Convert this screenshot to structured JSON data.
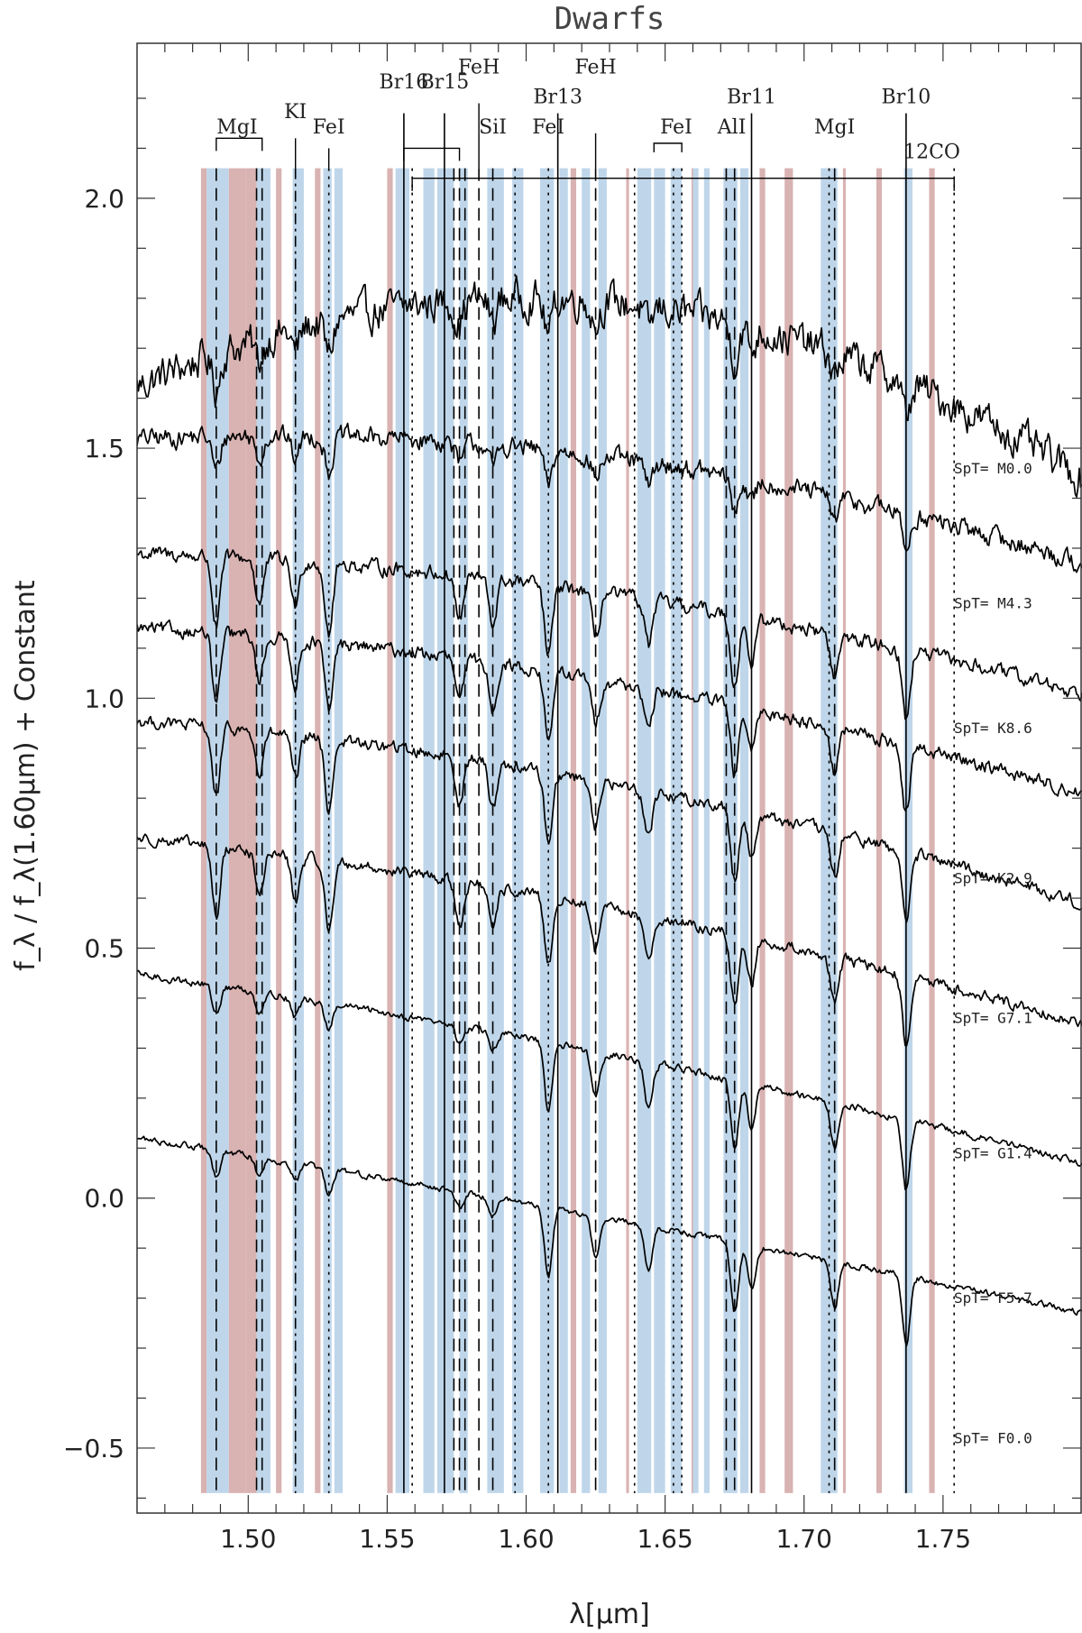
{
  "chart_data": {
    "type": "line",
    "title": "Dwarfs",
    "xlabel": "λ[μm]",
    "ylabel": "f_λ / f_λ(1.60μm) + Constant",
    "xlim": [
      1.46,
      1.8
    ],
    "ylim": [
      -0.63,
      2.31
    ],
    "x_ticks": [
      1.5,
      1.55,
      1.6,
      1.65,
      1.7,
      1.75
    ],
    "x_tick_labels": [
      "1.50",
      "1.55",
      "1.60",
      "1.65",
      "1.70",
      "1.75"
    ],
    "y_ticks": [
      -0.5,
      0.0,
      0.5,
      1.0,
      1.5,
      2.0
    ],
    "y_tick_labels": [
      "−0.5",
      "0.0",
      "0.5",
      "1.0",
      "1.5",
      "2.0"
    ],
    "series": [
      {
        "name": "SpT= M0.0",
        "offset": 1.8,
        "slope": 0.0,
        "curv": 9.0,
        "noise": 0.03
      },
      {
        "name": "SpT= M4.3",
        "offset": 1.5,
        "slope": -0.55,
        "curv": 3.0,
        "noise": 0.016
      },
      {
        "name": "SpT= K8.6",
        "offset": 1.23,
        "slope": -0.7,
        "curv": 2.0,
        "noise": 0.012
      },
      {
        "name": "SpT= K2.9",
        "offset": 1.06,
        "slope": -0.85,
        "curv": 2.0,
        "noise": 0.011
      },
      {
        "name": "SpT= G7.1",
        "offset": 0.86,
        "slope": -0.95,
        "curv": 2.0,
        "noise": 0.01
      },
      {
        "name": "SpT= G1.4",
        "offset": 0.61,
        "slope": -1.0,
        "curv": 1.5,
        "noise": 0.009
      },
      {
        "name": "SpT= F5.7",
        "offset": 0.32,
        "slope": -1.05,
        "curv": 1.0,
        "noise": 0.006
      },
      {
        "name": "SpT= F0.0",
        "offset": -0.01,
        "slope": -1.0,
        "curv": 0.5,
        "noise": 0.005
      }
    ],
    "series_labels": [
      "SpT= M0.0",
      "SpT= M4.3",
      "SpT= K8.6",
      "SpT= K2.9",
      "SpT= G7.1",
      "SpT= G1.4",
      "SpT= F5.7",
      "SpT= F0.0"
    ],
    "continuum_bands": [
      [
        1.483,
        1.485
      ],
      [
        1.493,
        1.499
      ],
      [
        1.499,
        1.503
      ],
      [
        1.51,
        1.512
      ],
      [
        1.524,
        1.526
      ],
      [
        1.55,
        1.552
      ],
      [
        1.616,
        1.618
      ],
      [
        1.636,
        1.637
      ],
      [
        1.6595,
        1.6605
      ],
      [
        1.684,
        1.686
      ],
      [
        1.693,
        1.696
      ],
      [
        1.714,
        1.715
      ],
      [
        1.726,
        1.728
      ],
      [
        1.736,
        1.737
      ],
      [
        1.745,
        1.747
      ]
    ],
    "feature_bands": [
      [
        1.485,
        1.493
      ],
      [
        1.503,
        1.508
      ],
      [
        1.516,
        1.52
      ],
      [
        1.527,
        1.53
      ],
      [
        1.531,
        1.534
      ],
      [
        1.553,
        1.558
      ],
      [
        1.563,
        1.567
      ],
      [
        1.568,
        1.574
      ],
      [
        1.576,
        1.579
      ],
      [
        1.586,
        1.592
      ],
      [
        1.595,
        1.599
      ],
      [
        1.605,
        1.61
      ],
      [
        1.612,
        1.615
      ],
      [
        1.62,
        1.623
      ],
      [
        1.626,
        1.629
      ],
      [
        1.64,
        1.645
      ],
      [
        1.646,
        1.65
      ],
      [
        1.652,
        1.656
      ],
      [
        1.66,
        1.662
      ],
      [
        1.664,
        1.666
      ],
      [
        1.671,
        1.676
      ],
      [
        1.677,
        1.68
      ],
      [
        1.706,
        1.712
      ],
      [
        1.736,
        1.739
      ]
    ],
    "line_markers": [
      {
        "x": 1.4885,
        "style": "dashed"
      },
      {
        "x": 1.503,
        "style": "dashed"
      },
      {
        "x": 1.505,
        "style": "dashed"
      },
      {
        "x": 1.517,
        "style": "dashdot"
      },
      {
        "x": 1.529,
        "style": "dotted"
      },
      {
        "x": 1.556,
        "style": "solid"
      },
      {
        "x": 1.559,
        "style": "dotted"
      },
      {
        "x": 1.5706,
        "style": "solid"
      },
      {
        "x": 1.574,
        "style": "dashed"
      },
      {
        "x": 1.576,
        "style": "dashed"
      },
      {
        "x": 1.578,
        "style": "dashed"
      },
      {
        "x": 1.583,
        "style": "dashed"
      },
      {
        "x": 1.588,
        "style": "dashed"
      },
      {
        "x": 1.596,
        "style": "dotted"
      },
      {
        "x": 1.608,
        "style": "dotted"
      },
      {
        "x": 1.6114,
        "style": "solid"
      },
      {
        "x": 1.625,
        "style": "dashed"
      },
      {
        "x": 1.639,
        "style": "dotted"
      },
      {
        "x": 1.653,
        "style": "dotted"
      },
      {
        "x": 1.656,
        "style": "dotted"
      },
      {
        "x": 1.672,
        "style": "dashed"
      },
      {
        "x": 1.675,
        "style": "dashed"
      },
      {
        "x": 1.6811,
        "style": "solid"
      },
      {
        "x": 1.709,
        "style": "dotted"
      },
      {
        "x": 1.711,
        "style": "dashed"
      },
      {
        "x": 1.7367,
        "style": "solid"
      },
      {
        "x": 1.754,
        "style": "dotted"
      }
    ],
    "line_labels": [
      {
        "text": "MgI",
        "x": 1.496
      },
      {
        "text": "KI",
        "x": 1.517
      },
      {
        "text": "FeI",
        "x": 1.529
      },
      {
        "text": "Br16",
        "x": 1.556
      },
      {
        "text": "Br15",
        "x": 1.5706
      },
      {
        "text": "FeH",
        "x": 1.583
      },
      {
        "text": "SiI",
        "x": 1.588
      },
      {
        "text": "FeI",
        "x": 1.608
      },
      {
        "text": "Br13",
        "x": 1.6114
      },
      {
        "text": "FeH",
        "x": 1.625
      },
      {
        "text": "FeI",
        "x": 1.654
      },
      {
        "text": "AlI",
        "x": 1.674
      },
      {
        "text": "Br11",
        "x": 1.6811
      },
      {
        "text": "MgI",
        "x": 1.711
      },
      {
        "text": "Br10",
        "x": 1.7367
      },
      {
        "text": "12CO",
        "x": 1.746
      }
    ],
    "absorption_lines": [
      1.4885,
      1.504,
      1.517,
      1.529,
      1.576,
      1.588,
      1.608,
      1.625,
      1.644,
      1.675,
      1.6811,
      1.711,
      1.7367
    ],
    "colors": {
      "continuum": "#d9b2b2",
      "feature": "#bfd6ea",
      "line": "#000000"
    }
  }
}
